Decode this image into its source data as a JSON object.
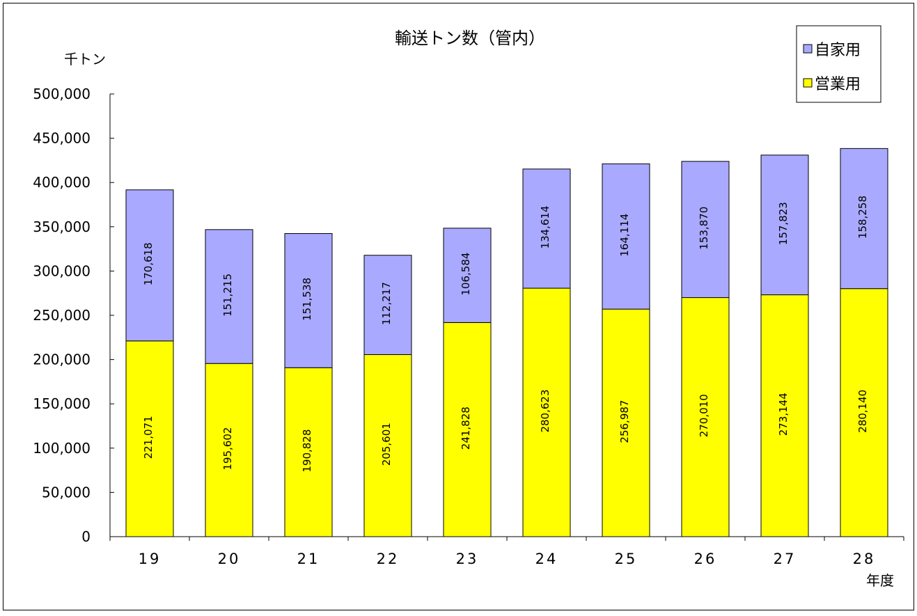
{
  "chart_data": {
    "type": "bar",
    "stacked": true,
    "title": "輸送トン数（管内）",
    "ylabel": "千トン",
    "xlabel": "年度",
    "categories": [
      "19",
      "20",
      "21",
      "22",
      "23",
      "24",
      "25",
      "26",
      "27",
      "28"
    ],
    "series": [
      {
        "name": "営業用",
        "color": "#ffff00",
        "values": [
          221071,
          195602,
          190828,
          205601,
          241828,
          280623,
          256987,
          270010,
          273144,
          280140
        ],
        "labels": [
          "221,071",
          "195,602",
          "190,828",
          "205,601",
          "241,828",
          "280,623",
          "256,987",
          "270,010",
          "273,144",
          "280,140"
        ]
      },
      {
        "name": "自家用",
        "color": "#a9a9ff",
        "values": [
          170618,
          151215,
          151538,
          112217,
          106584,
          134614,
          164114,
          153870,
          157823,
          158258
        ],
        "labels": [
          "170,618",
          "151,215",
          "151,538",
          "112,217",
          "106,584",
          "134,614",
          "164,114",
          "153,870",
          "157,823",
          "158,258"
        ]
      }
    ],
    "ylim": [
      0,
      500000
    ],
    "yticks": [
      0,
      50000,
      100000,
      150000,
      200000,
      250000,
      300000,
      350000,
      400000,
      450000,
      500000
    ],
    "ytick_labels": [
      "0",
      "50,000",
      "100,000",
      "150,000",
      "200,000",
      "250,000",
      "300,000",
      "350,000",
      "400,000",
      "450,000",
      "500,000"
    ],
    "grid": false,
    "legend_position": "top-right",
    "legend_order": [
      "自家用",
      "営業用"
    ]
  }
}
